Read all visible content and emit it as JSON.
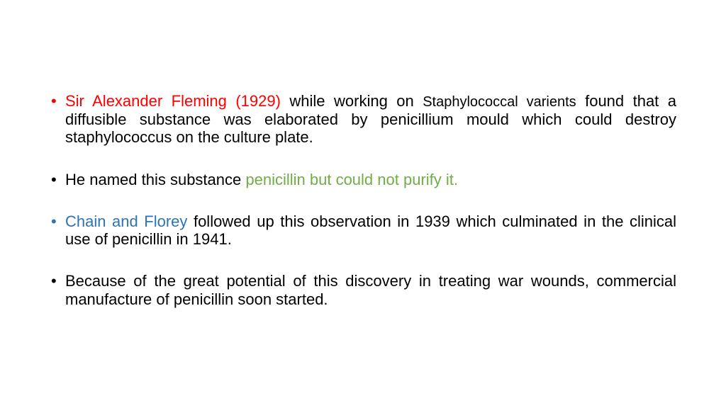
{
  "slide": {
    "background_color": "#ffffff",
    "font_family": "Comic Sans MS",
    "base_font_size": 22,
    "colors": {
      "red": "#ff0000",
      "blue": "#2e74b5",
      "green": "#70ad47",
      "black": "#000000"
    },
    "bullets": [
      {
        "bullet_color": "#ff0000",
        "segments": [
          {
            "text": "Sir Alexander Fleming (1929)",
            "color": "#ff0000",
            "font_size": 22
          },
          {
            "text": " while working on ",
            "color": "#000000",
            "font_size": 22
          },
          {
            "text": "Staphylococcal varients",
            "color": "#000000",
            "font_size": 20
          },
          {
            "text": " found that a diffusible substance was elaborated by penicillium mould  which could destroy staphylococcus on the culture plate.",
            "color": "#000000",
            "font_size": 22
          }
        ]
      },
      {
        "bullet_color": "#000000",
        "segments": [
          {
            "text": "He named this substance ",
            "color": "#000000",
            "font_size": 22
          },
          {
            "text": "penicillin but could not purify it.",
            "color": "#70ad47",
            "font_size": 22
          }
        ]
      },
      {
        "bullet_color": "#2e74b5",
        "segments": [
          {
            "text": "Chain and Florey ",
            "color": "#2e74b5",
            "font_size": 22
          },
          {
            "text": "followed up this observation in 1939 which culminated in the clinical use of penicillin in 1941.",
            "color": "#000000",
            "font_size": 22
          }
        ]
      },
      {
        "bullet_color": "#000000",
        "segments": [
          {
            "text": "Because of the great potential of this discovery in treating war wounds, commercial manufacture of penicillin soon started.",
            "color": "#000000",
            "font_size": 22
          }
        ]
      }
    ]
  }
}
